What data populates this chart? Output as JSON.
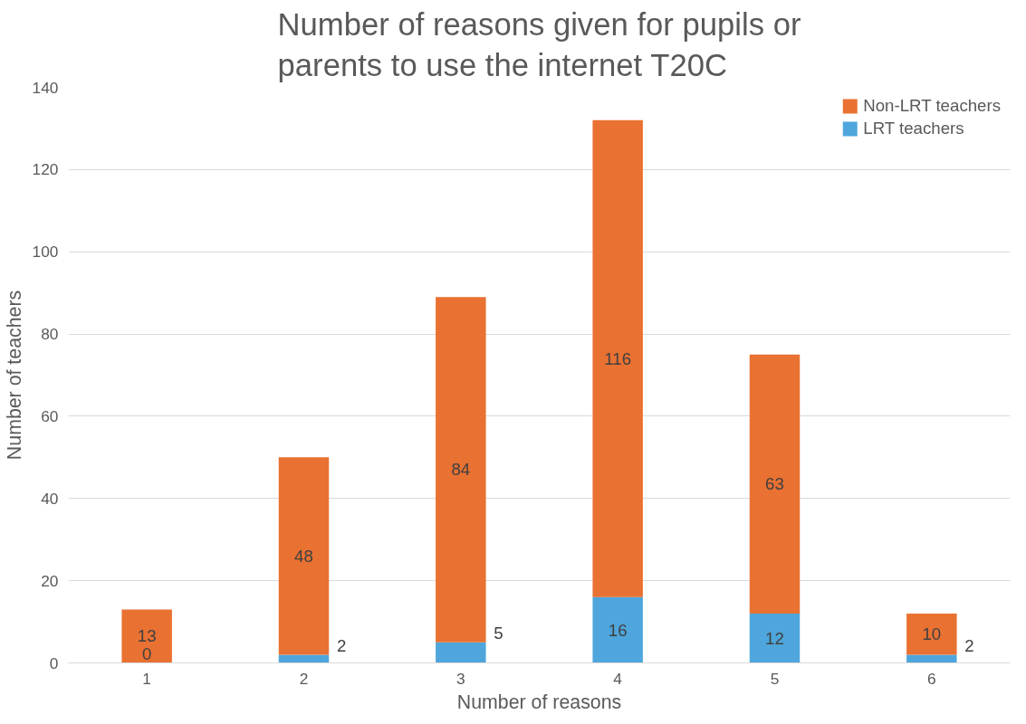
{
  "chart_data": {
    "type": "bar",
    "title": "Number of reasons given for pupils or parents to use the internet T20C",
    "xlabel": "Number of reasons",
    "ylabel": "Number of teachers",
    "categories": [
      "1",
      "2",
      "3",
      "4",
      "5",
      "6"
    ],
    "series": [
      {
        "name": "LRT teachers",
        "color": "#4ea6dc",
        "values": [
          0,
          2,
          5,
          16,
          12,
          2
        ]
      },
      {
        "name": "Non-LRT teachers",
        "color": "#e97132",
        "values": [
          13,
          48,
          84,
          116,
          63,
          10
        ]
      }
    ],
    "stacked": true,
    "data_labels": true,
    "ylim": [
      0,
      140
    ],
    "yticks": [
      0,
      20,
      40,
      60,
      80,
      100,
      120,
      140
    ],
    "grid": "y",
    "legend": "top right"
  }
}
